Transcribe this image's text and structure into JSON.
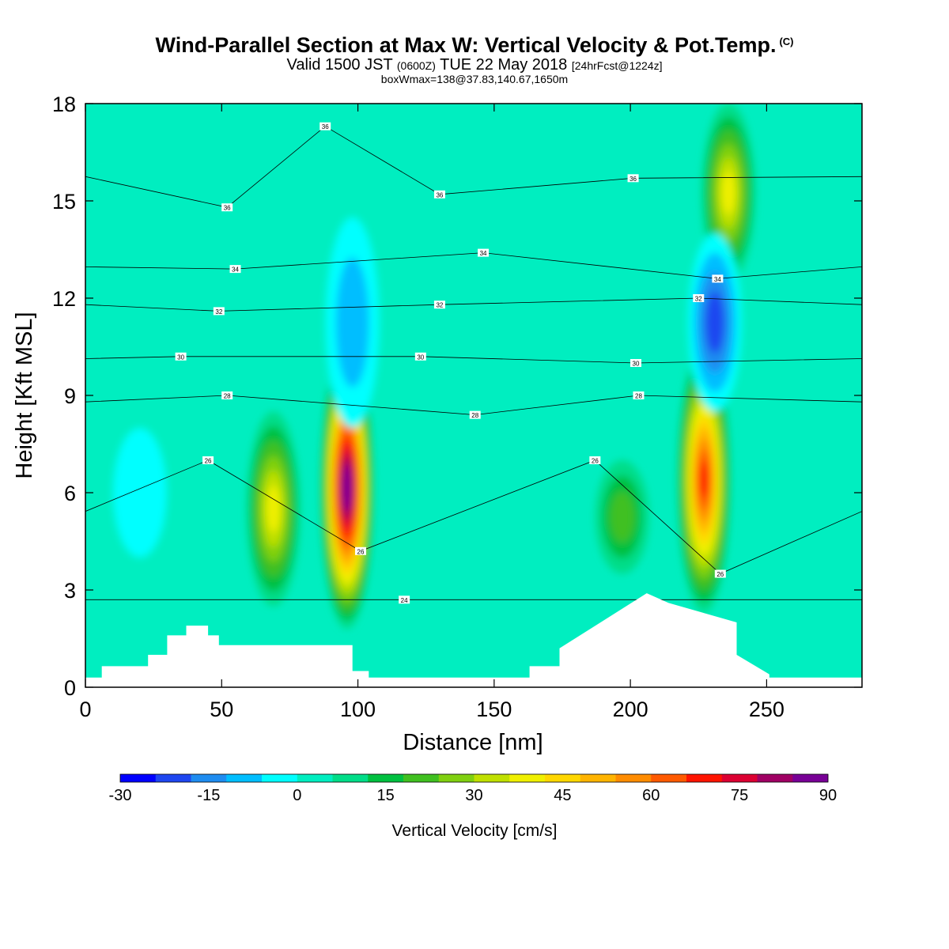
{
  "title": {
    "main": "Wind-Parallel Section at Max W: Vertical Velocity & Pot.Temp.",
    "copyright": "(C)",
    "line2_a": "Valid 1500 JST",
    "line2_b": "(0600Z)",
    "line2_c": "TUE 22 May 2018",
    "line2_d": "[24hrFcst@1224z]",
    "line3": "boxWmax=138@37.83,140.67,1650m"
  },
  "chart_data": {
    "type": "heatmap",
    "xlabel": "Distance [nm]",
    "ylabel": "Height [Kft MSL]",
    "xlim": [
      0,
      285
    ],
    "ylim": [
      0,
      18
    ],
    "xticks": [
      0,
      50,
      100,
      150,
      200,
      250
    ],
    "yticks": [
      0,
      3,
      6,
      9,
      12,
      15,
      18
    ],
    "colorbar": {
      "label": "Vertical Velocity [cm/s]",
      "ticks": [
        -30,
        -15,
        0,
        15,
        30,
        45,
        60,
        75,
        90
      ],
      "colors": [
        "#0000ff",
        "#1e46f0",
        "#1e8cf0",
        "#00beff",
        "#00ffff",
        "#00eec0",
        "#00dd88",
        "#00c040",
        "#40c020",
        "#80d010",
        "#c0e000",
        "#f0f000",
        "#ffd700",
        "#ffb400",
        "#ff8c00",
        "#ff5a00",
        "#ff1400",
        "#dc0032",
        "#a00064",
        "#780096"
      ]
    },
    "updraft_cores": [
      {
        "x": 96,
        "z_min": 1.8,
        "z_max": 10.5,
        "max_w": 90
      },
      {
        "x": 69,
        "z_min": 2.5,
        "z_max": 8.5,
        "max_w": 38
      },
      {
        "x": 227,
        "z_min": 2.3,
        "z_max": 10.5,
        "max_w": 70
      },
      {
        "x": 197,
        "z_min": 3.5,
        "z_max": 7.0,
        "max_w": 20
      },
      {
        "x": 236,
        "z_min": 12.5,
        "z_max": 18.0,
        "max_w": 38
      }
    ],
    "downdraft_cores": [
      {
        "x": 98,
        "z_min": 8.0,
        "z_max": 14.5,
        "min_w": -15
      },
      {
        "x": 231,
        "z_min": 8.5,
        "z_max": 14.0,
        "min_w": -25
      },
      {
        "x": 20,
        "z_min": 4.0,
        "z_max": 8.0,
        "min_w": -8
      }
    ],
    "terrain": {
      "x": [
        0,
        6,
        6,
        23,
        23,
        30,
        30,
        37,
        37,
        45,
        45,
        49,
        49,
        98,
        98,
        104,
        104,
        163,
        163,
        174,
        174,
        206,
        206,
        214,
        214,
        239,
        239,
        251,
        251,
        285
      ],
      "z": [
        0.3,
        0.3,
        0.65,
        0.65,
        1.0,
        1.0,
        1.6,
        1.6,
        1.9,
        1.9,
        1.6,
        1.6,
        1.3,
        1.3,
        0.5,
        0.5,
        0.3,
        0.3,
        0.65,
        0.65,
        1.2,
        2.9,
        2.9,
        2.6,
        2.6,
        2.0,
        1.0,
        0.4,
        0.3,
        0.3
      ]
    },
    "isentrope_labels": [
      {
        "text": "24",
        "x": 117,
        "z": 2.7
      },
      {
        "text": "26",
        "x": 45,
        "z": 7.0
      },
      {
        "text": "26",
        "x": 187,
        "z": 7.0
      },
      {
        "text": "26",
        "x": 101,
        "z": 4.2
      },
      {
        "text": "26",
        "x": 233,
        "z": 3.5
      },
      {
        "text": "28",
        "x": 52,
        "z": 9.0
      },
      {
        "text": "28",
        "x": 143,
        "z": 8.4
      },
      {
        "text": "28",
        "x": 203,
        "z": 9.0
      },
      {
        "text": "30",
        "x": 35,
        "z": 10.2
      },
      {
        "text": "30",
        "x": 123,
        "z": 10.2
      },
      {
        "text": "30",
        "x": 202,
        "z": 10.0
      },
      {
        "text": "32",
        "x": 49,
        "z": 11.6
      },
      {
        "text": "32",
        "x": 130,
        "z": 11.8
      },
      {
        "text": "32",
        "x": 225,
        "z": 12.0
      },
      {
        "text": "34",
        "x": 55,
        "z": 12.9
      },
      {
        "text": "34",
        "x": 146,
        "z": 13.4
      },
      {
        "text": "34",
        "x": 232,
        "z": 12.6
      },
      {
        "text": "36",
        "x": 52,
        "z": 14.8
      },
      {
        "text": "36",
        "x": 130,
        "z": 15.2
      },
      {
        "text": "36",
        "x": 201,
        "z": 15.7
      },
      {
        "text": "36",
        "x": 88,
        "z": 17.3
      }
    ]
  }
}
